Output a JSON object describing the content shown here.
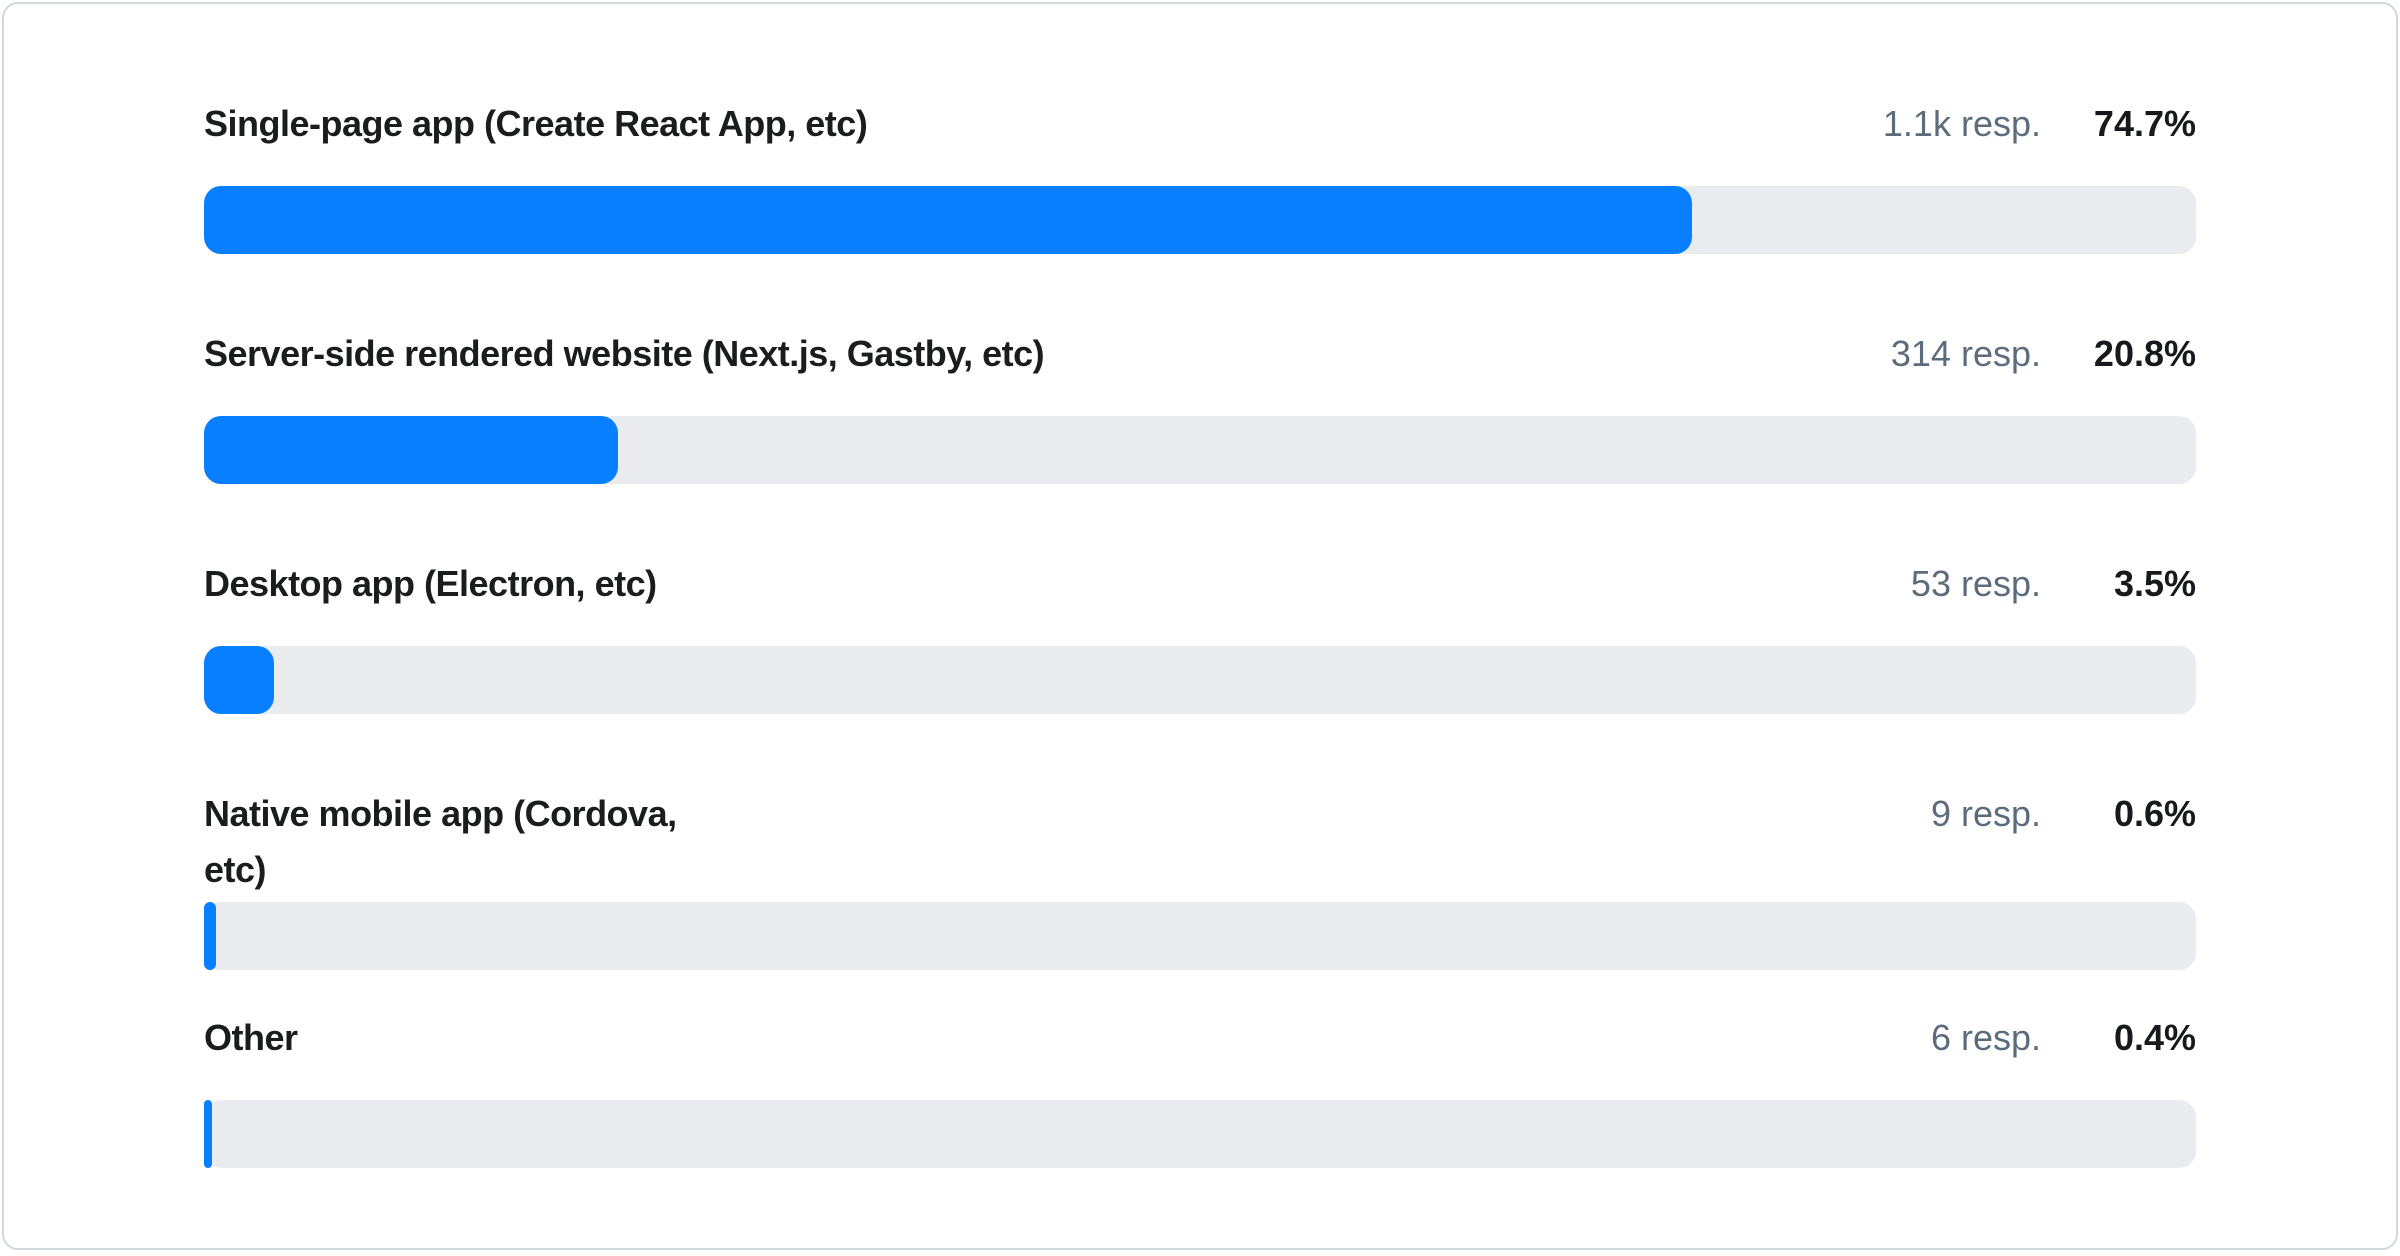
{
  "colors": {
    "card-bg": "#FFFFFF",
    "card-border": "#D3D8DC",
    "label-text": "#1B1C1E",
    "muted-text": "#5C6C7C",
    "percent-text": "#17191C",
    "bar-fill": "#087FFF",
    "bar-track": "#E9EBEE"
  },
  "chart_data": {
    "type": "bar",
    "orientation": "horizontal",
    "title": "",
    "categories": [
      "Single-page app (Create React App, etc)",
      "Server-side rendered website (Next.js, Gastby, etc)",
      "Desktop app (Electron, etc)",
      "Native mobile app (Cordova, etc)",
      "Other"
    ],
    "series": [
      {
        "name": "percent_of_responses",
        "values": [
          74.7,
          20.8,
          3.5,
          0.6,
          0.4
        ]
      },
      {
        "name": "response_count",
        "values": [
          1100,
          314,
          53,
          9,
          6
        ]
      }
    ],
    "value_labels": [
      "74.7%",
      "20.8%",
      "3.5%",
      "0.6%",
      "0.4%"
    ],
    "count_labels": [
      "1.1k resp.",
      "314 resp.",
      "53 resp.",
      "9 resp.",
      "6 resp."
    ],
    "xlim": [
      0,
      100
    ],
    "grid": false,
    "legend": false
  },
  "rows": [
    {
      "label": "Single-page app (Create React App, etc)",
      "responses": "1.1k resp.",
      "percent": "74.7%",
      "bar_percent": 74.7
    },
    {
      "label": "Server-side rendered website (Next.js, Gastby, etc)",
      "responses": "314 resp.",
      "percent": "20.8%",
      "bar_percent": 20.8
    },
    {
      "label": "Desktop app (Electron, etc)",
      "responses": "53 resp.",
      "percent": "3.5%",
      "bar_percent": 3.5
    },
    {
      "label": "Native mobile app (Cordova, etc)",
      "responses": "9 resp.",
      "percent": "0.6%",
      "bar_percent": 0.6
    },
    {
      "label": "Other",
      "responses": "6 resp.",
      "percent": "0.4%",
      "bar_percent": 0.4
    }
  ]
}
